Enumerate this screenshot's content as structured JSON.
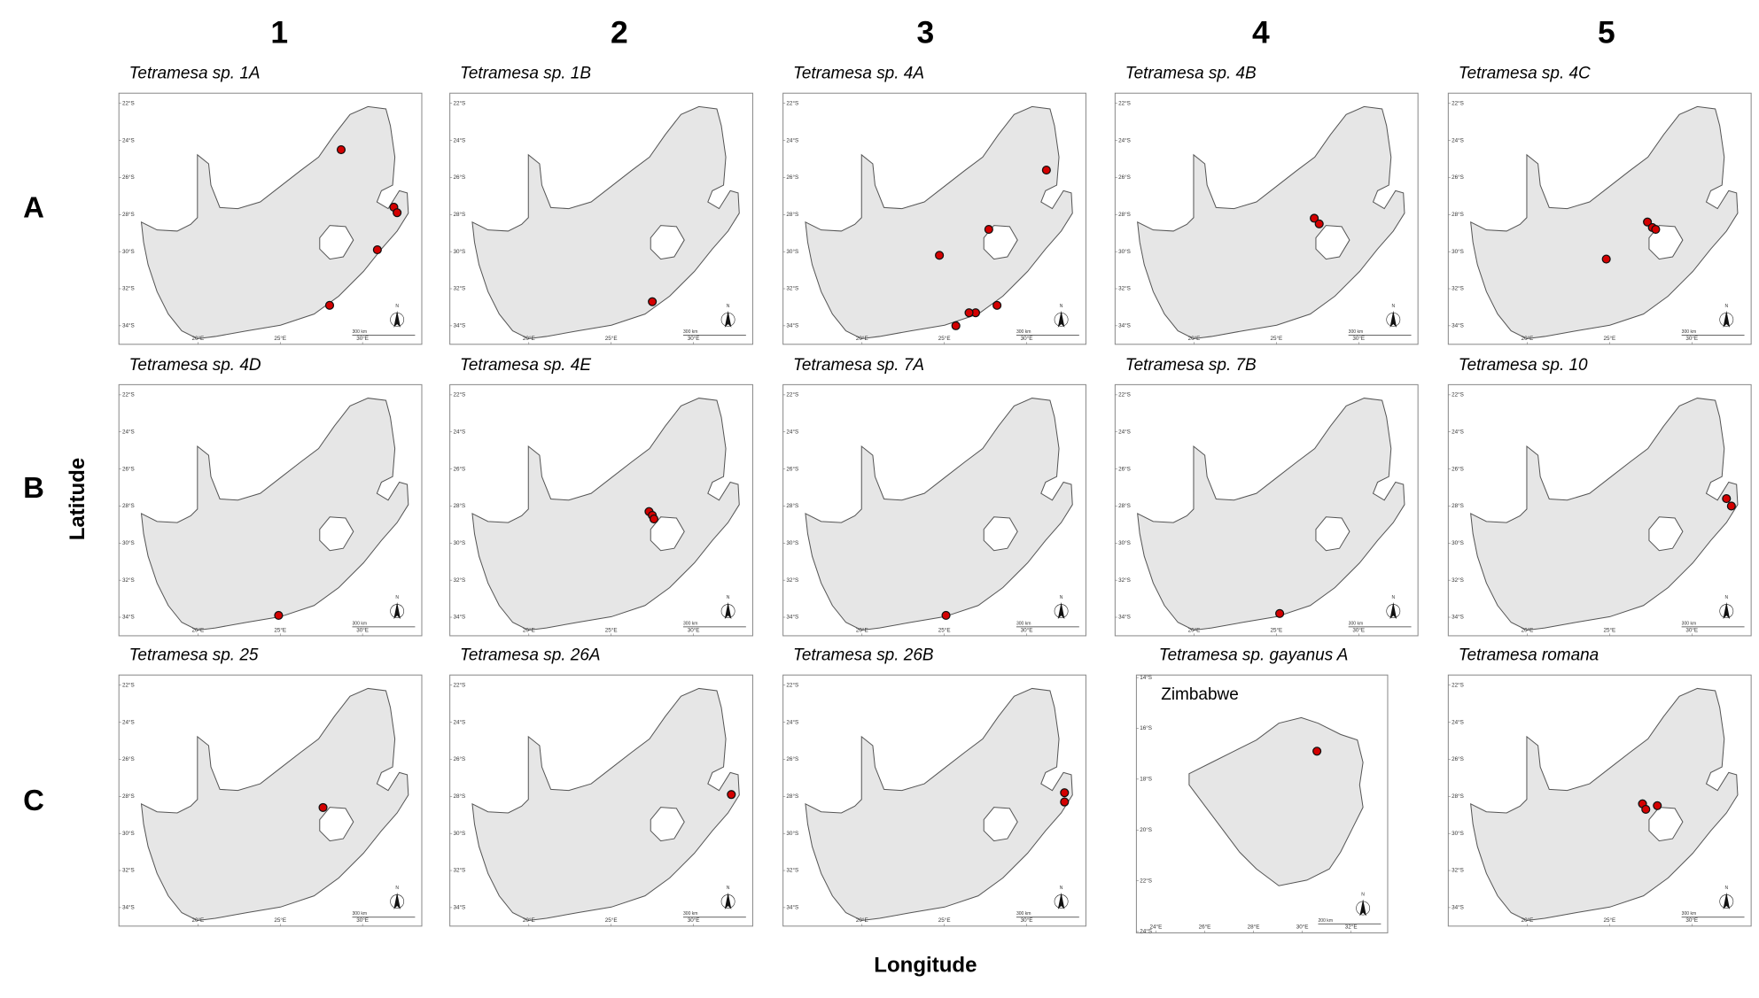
{
  "columns": [
    "1",
    "2",
    "3",
    "4",
    "5"
  ],
  "rows": [
    "A",
    "B",
    "C"
  ],
  "y_label": "Latitude",
  "x_label": "Longitude",
  "panels": [
    {
      "title": "Tetramesa sp. 1A",
      "lon": [
        28.7,
        31.9,
        32.1,
        30.9,
        28.0
      ],
      "lat": [
        -24.5,
        -27.6,
        -27.9,
        -29.9,
        -32.9
      ],
      "xlim": [
        15.2,
        33.6
      ],
      "ylim": [
        -35.0,
        -21.45
      ],
      "xticks": [
        {
          "value": 20,
          "label": "20°E"
        },
        {
          "value": 25,
          "label": "25°E"
        },
        {
          "value": 30,
          "label": "30°E"
        }
      ],
      "yticks": [
        {
          "value": -22,
          "label": "22°S"
        },
        {
          "value": -24,
          "label": "24°S"
        },
        {
          "value": -26,
          "label": "26°S"
        },
        {
          "value": -28,
          "label": "28°S"
        },
        {
          "value": -30,
          "label": "30°S"
        },
        {
          "value": -32,
          "label": "32°S"
        },
        {
          "value": -34,
          "label": "34°S"
        }
      ],
      "scale_label": "300 km",
      "north": "N"
    },
    {
      "title": "Tetramesa sp. 1B",
      "lon": [
        27.5
      ],
      "lat": [
        -32.7
      ],
      "xlim": [
        15.2,
        33.6
      ],
      "ylim": [
        -35.0,
        -21.45
      ],
      "xticks": [
        {
          "value": 20,
          "label": "20°E"
        },
        {
          "value": 25,
          "label": "25°E"
        },
        {
          "value": 30,
          "label": "30°E"
        }
      ],
      "yticks": [
        {
          "value": -22,
          "label": "22°S"
        },
        {
          "value": -24,
          "label": "24°S"
        },
        {
          "value": -26,
          "label": "26°S"
        },
        {
          "value": -28,
          "label": "28°S"
        },
        {
          "value": -30,
          "label": "30°S"
        },
        {
          "value": -32,
          "label": "32°S"
        },
        {
          "value": -34,
          "label": "34°S"
        }
      ],
      "scale_label": "300 km",
      "north": "N"
    },
    {
      "title": "Tetramesa sp. 4A",
      "lon": [
        31.2,
        27.7,
        24.7,
        28.2,
        26.9,
        26.5,
        25.7
      ],
      "lat": [
        -25.6,
        -28.8,
        -30.2,
        -32.9,
        -33.3,
        -33.3,
        -34.0
      ],
      "xlim": [
        15.2,
        33.6
      ],
      "ylim": [
        -35.0,
        -21.45
      ],
      "xticks": [
        {
          "value": 20,
          "label": "20°E"
        },
        {
          "value": 25,
          "label": "25°E"
        },
        {
          "value": 30,
          "label": "30°E"
        }
      ],
      "yticks": [
        {
          "value": -22,
          "label": "22°S"
        },
        {
          "value": -24,
          "label": "24°S"
        },
        {
          "value": -26,
          "label": "26°S"
        },
        {
          "value": -28,
          "label": "28°S"
        },
        {
          "value": -30,
          "label": "30°S"
        },
        {
          "value": -32,
          "label": "32°S"
        },
        {
          "value": -34,
          "label": "34°S"
        }
      ],
      "scale_label": "300 km",
      "north": "N"
    },
    {
      "title": "Tetramesa sp. 4B",
      "lon": [
        27.3,
        27.6
      ],
      "lat": [
        -28.2,
        -28.5
      ],
      "xlim": [
        15.2,
        33.6
      ],
      "ylim": [
        -35.0,
        -21.45
      ],
      "xticks": [
        {
          "value": 20,
          "label": "20°E"
        },
        {
          "value": 25,
          "label": "25°E"
        },
        {
          "value": 30,
          "label": "30°E"
        }
      ],
      "yticks": [
        {
          "value": -22,
          "label": "22°S"
        },
        {
          "value": -24,
          "label": "24°S"
        },
        {
          "value": -26,
          "label": "26°S"
        },
        {
          "value": -28,
          "label": "28°S"
        },
        {
          "value": -30,
          "label": "30°S"
        },
        {
          "value": -32,
          "label": "32°S"
        },
        {
          "value": -34,
          "label": "34°S"
        }
      ],
      "scale_label": "300 km",
      "north": "N"
    },
    {
      "title": "Tetramesa sp. 4C",
      "lon": [
        27.3,
        27.6,
        27.8,
        24.8
      ],
      "lat": [
        -28.4,
        -28.7,
        -28.8,
        -30.4
      ],
      "xlim": [
        15.2,
        33.6
      ],
      "ylim": [
        -35.0,
        -21.45
      ],
      "xticks": [
        {
          "value": 20,
          "label": "20°E"
        },
        {
          "value": 25,
          "label": "25°E"
        },
        {
          "value": 30,
          "label": "30°E"
        }
      ],
      "yticks": [
        {
          "value": -22,
          "label": "22°S"
        },
        {
          "value": -24,
          "label": "24°S"
        },
        {
          "value": -26,
          "label": "26°S"
        },
        {
          "value": -28,
          "label": "28°S"
        },
        {
          "value": -30,
          "label": "30°S"
        },
        {
          "value": -32,
          "label": "32°S"
        },
        {
          "value": -34,
          "label": "34°S"
        }
      ],
      "scale_label": "300 km",
      "north": "N"
    },
    {
      "title": "Tetramesa sp. 4D",
      "lon": [
        24.9
      ],
      "lat": [
        -33.9
      ],
      "xlim": [
        15.2,
        33.6
      ],
      "ylim": [
        -35.0,
        -21.45
      ],
      "xticks": [
        {
          "value": 20,
          "label": "20°E"
        },
        {
          "value": 25,
          "label": "25°E"
        },
        {
          "value": 30,
          "label": "30°E"
        }
      ],
      "yticks": [
        {
          "value": -22,
          "label": "22°S"
        },
        {
          "value": -24,
          "label": "24°S"
        },
        {
          "value": -26,
          "label": "26°S"
        },
        {
          "value": -28,
          "label": "28°S"
        },
        {
          "value": -30,
          "label": "30°S"
        },
        {
          "value": -32,
          "label": "32°S"
        },
        {
          "value": -34,
          "label": "34°S"
        }
      ],
      "scale_label": "300 km",
      "north": "N"
    },
    {
      "title": "Tetramesa sp. 4E",
      "lon": [
        27.3,
        27.5,
        27.6
      ],
      "lat": [
        -28.3,
        -28.5,
        -28.7
      ],
      "xlim": [
        15.2,
        33.6
      ],
      "ylim": [
        -35.0,
        -21.45
      ],
      "xticks": [
        {
          "value": 20,
          "label": "20°E"
        },
        {
          "value": 25,
          "label": "25°E"
        },
        {
          "value": 30,
          "label": "30°E"
        }
      ],
      "yticks": [
        {
          "value": -22,
          "label": "22°S"
        },
        {
          "value": -24,
          "label": "24°S"
        },
        {
          "value": -26,
          "label": "26°S"
        },
        {
          "value": -28,
          "label": "28°S"
        },
        {
          "value": -30,
          "label": "30°S"
        },
        {
          "value": -32,
          "label": "32°S"
        },
        {
          "value": -34,
          "label": "34°S"
        }
      ],
      "scale_label": "300 km",
      "north": "N"
    },
    {
      "title": "Tetramesa sp. 7A",
      "lon": [
        25.1
      ],
      "lat": [
        -33.9
      ],
      "xlim": [
        15.2,
        33.6
      ],
      "ylim": [
        -35.0,
        -21.45
      ],
      "xticks": [
        {
          "value": 20,
          "label": "20°E"
        },
        {
          "value": 25,
          "label": "25°E"
        },
        {
          "value": 30,
          "label": "30°E"
        }
      ],
      "yticks": [
        {
          "value": -22,
          "label": "22°S"
        },
        {
          "value": -24,
          "label": "24°S"
        },
        {
          "value": -26,
          "label": "26°S"
        },
        {
          "value": -28,
          "label": "28°S"
        },
        {
          "value": -30,
          "label": "30°S"
        },
        {
          "value": -32,
          "label": "32°S"
        },
        {
          "value": -34,
          "label": "34°S"
        }
      ],
      "scale_label": "300 km",
      "north": "N"
    },
    {
      "title": "Tetramesa sp. 7B",
      "lon": [
        25.2
      ],
      "lat": [
        -33.8
      ],
      "xlim": [
        15.2,
        33.6
      ],
      "ylim": [
        -35.0,
        -21.45
      ],
      "xticks": [
        {
          "value": 20,
          "label": "20°E"
        },
        {
          "value": 25,
          "label": "25°E"
        },
        {
          "value": 30,
          "label": "30°E"
        }
      ],
      "yticks": [
        {
          "value": -22,
          "label": "22°S"
        },
        {
          "value": -24,
          "label": "24°S"
        },
        {
          "value": -26,
          "label": "26°S"
        },
        {
          "value": -28,
          "label": "28°S"
        },
        {
          "value": -30,
          "label": "30°S"
        },
        {
          "value": -32,
          "label": "32°S"
        },
        {
          "value": -34,
          "label": "34°S"
        }
      ],
      "scale_label": "300 km",
      "north": "N"
    },
    {
      "title": "Tetramesa sp. 10",
      "lon": [
        32.1,
        32.4
      ],
      "lat": [
        -27.6,
        -28.0
      ],
      "xlim": [
        15.2,
        33.6
      ],
      "ylim": [
        -35.0,
        -21.45
      ],
      "xticks": [
        {
          "value": 20,
          "label": "20°E"
        },
        {
          "value": 25,
          "label": "25°E"
        },
        {
          "value": 30,
          "label": "30°E"
        }
      ],
      "yticks": [
        {
          "value": -22,
          "label": "22°S"
        },
        {
          "value": -24,
          "label": "24°S"
        },
        {
          "value": -26,
          "label": "26°S"
        },
        {
          "value": -28,
          "label": "28°S"
        },
        {
          "value": -30,
          "label": "30°S"
        },
        {
          "value": -32,
          "label": "32°S"
        },
        {
          "value": -34,
          "label": "34°S"
        }
      ],
      "scale_label": "300 km",
      "north": "N"
    },
    {
      "title": "Tetramesa sp. 25",
      "lon": [
        27.6
      ],
      "lat": [
        -28.6
      ],
      "xlim": [
        15.2,
        33.6
      ],
      "ylim": [
        -35.0,
        -21.45
      ],
      "xticks": [
        {
          "value": 20,
          "label": "20°E"
        },
        {
          "value": 25,
          "label": "25°E"
        },
        {
          "value": 30,
          "label": "30°E"
        }
      ],
      "yticks": [
        {
          "value": -22,
          "label": "22°S"
        },
        {
          "value": -24,
          "label": "24°S"
        },
        {
          "value": -26,
          "label": "26°S"
        },
        {
          "value": -28,
          "label": "28°S"
        },
        {
          "value": -30,
          "label": "30°S"
        },
        {
          "value": -32,
          "label": "32°S"
        },
        {
          "value": -34,
          "label": "34°S"
        }
      ],
      "scale_label": "300 km",
      "north": "N"
    },
    {
      "title": "Tetramesa sp. 26A",
      "lon": [
        32.3
      ],
      "lat": [
        -27.9
      ],
      "xlim": [
        15.2,
        33.6
      ],
      "ylim": [
        -35.0,
        -21.45
      ],
      "xticks": [
        {
          "value": 20,
          "label": "20°E"
        },
        {
          "value": 25,
          "label": "25°E"
        },
        {
          "value": 30,
          "label": "30°E"
        }
      ],
      "yticks": [
        {
          "value": -22,
          "label": "22°S"
        },
        {
          "value": -24,
          "label": "24°S"
        },
        {
          "value": -26,
          "label": "26°S"
        },
        {
          "value": -28,
          "label": "28°S"
        },
        {
          "value": -30,
          "label": "30°S"
        },
        {
          "value": -32,
          "label": "32°S"
        },
        {
          "value": -34,
          "label": "34°S"
        }
      ],
      "scale_label": "300 km",
      "north": "N"
    },
    {
      "title": "Tetramesa sp. 26B",
      "lon": [
        32.3,
        32.3
      ],
      "lat": [
        -27.8,
        -28.3
      ],
      "xlim": [
        15.2,
        33.6
      ],
      "ylim": [
        -35.0,
        -21.45
      ],
      "xticks": [
        {
          "value": 20,
          "label": "20°E"
        },
        {
          "value": 25,
          "label": "25°E"
        },
        {
          "value": 30,
          "label": "30°E"
        }
      ],
      "yticks": [
        {
          "value": -22,
          "label": "22°S"
        },
        {
          "value": -24,
          "label": "24°S"
        },
        {
          "value": -26,
          "label": "26°S"
        },
        {
          "value": -28,
          "label": "28°S"
        },
        {
          "value": -30,
          "label": "30°S"
        },
        {
          "value": -32,
          "label": "32°S"
        },
        {
          "value": -34,
          "label": "34°S"
        }
      ],
      "scale_label": "300 km",
      "north": "N"
    },
    {
      "title": "Tetramesa sp. gayanus A",
      "label": "Zimbabwe",
      "lon": [
        30.6
      ],
      "lat": [
        -16.9
      ],
      "xlim": [
        23.2,
        33.5
      ],
      "ylim": [
        -24.05,
        -13.9
      ],
      "xticks": [
        {
          "value": 24,
          "label": "24°E"
        },
        {
          "value": 26,
          "label": "26°E"
        },
        {
          "value": 28,
          "label": "28°E"
        },
        {
          "value": 30,
          "label": "30°E"
        },
        {
          "value": 32,
          "label": "32°E"
        }
      ],
      "yticks": [
        {
          "value": -14,
          "label": "14°S"
        },
        {
          "value": -16,
          "label": "16°S"
        },
        {
          "value": -18,
          "label": "18°S"
        },
        {
          "value": -20,
          "label": "20°S"
        },
        {
          "value": -22,
          "label": "22°S"
        },
        {
          "value": -24,
          "label": "24°S"
        }
      ],
      "scale_label": "200 km",
      "north": "N"
    },
    {
      "title": "Tetramesa romana",
      "lon": [
        27.0,
        27.2,
        27.9
      ],
      "lat": [
        -28.4,
        -28.7,
        -28.5
      ],
      "xlim": [
        15.2,
        33.6
      ],
      "ylim": [
        -35.0,
        -21.45
      ],
      "xticks": [
        {
          "value": 20,
          "label": "20°E"
        },
        {
          "value": 25,
          "label": "25°E"
        },
        {
          "value": 30,
          "label": "30°E"
        }
      ],
      "yticks": [
        {
          "value": -22,
          "label": "22°S"
        },
        {
          "value": -24,
          "label": "24°S"
        },
        {
          "value": -26,
          "label": "26°S"
        },
        {
          "value": -28,
          "label": "28°S"
        },
        {
          "value": -30,
          "label": "30°S"
        },
        {
          "value": -32,
          "label": "32°S"
        },
        {
          "value": -34,
          "label": "34°S"
        }
      ],
      "scale_label": "300 km",
      "north": "N"
    }
  ]
}
